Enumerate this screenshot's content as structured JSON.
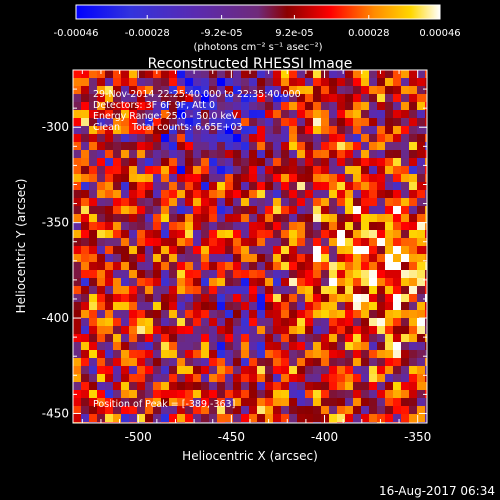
{
  "colorbar": {
    "ticks": [
      "-0.00046",
      "-0.00028",
      "-9.2e-05",
      "9.2e-05",
      "0.00028",
      "0.00046"
    ],
    "tick_values": [
      -0.00046,
      -0.00028,
      -9.2e-05,
      9.2e-05,
      0.00028,
      0.00046
    ],
    "range": [
      -0.00046,
      0.00046
    ],
    "units": "(photons cm⁻² s⁻¹ asec⁻²)"
  },
  "chart_data": {
    "type": "heatmap",
    "title": "Reconstructed RHESSI Image",
    "xlabel": "Heliocentric X (arcsec)",
    "ylabel": "Heliocentric Y (arcsec)",
    "xlim": [
      -535,
      -345
    ],
    "ylim": [
      -455,
      -270
    ],
    "x_ticks": [
      "-500",
      "-450",
      "-400",
      "-350"
    ],
    "x_tick_values": [
      -500,
      -450,
      -400,
      -350
    ],
    "y_ticks": [
      "-300",
      "-350",
      "-400",
      "-450"
    ],
    "y_tick_values": [
      -300,
      -350,
      -400,
      -450
    ],
    "peak": {
      "x": -389,
      "y": -363
    },
    "annotations": [
      "29-Nov-2014 22:25:40.000 to 22:35:40.000",
      "Detectors: 3F 6F 9F, Att 0",
      "Energy Range: 25.0 - 50.0 keV",
      "Clean    Total counts: 6.65E+03"
    ],
    "peak_label": "Position of Peak = [-389,-363]"
  },
  "colors": {
    "background": "#000000",
    "foreground": "#ffffff",
    "colormap_stops": [
      "#0000ff",
      "#3333dd",
      "#5a2ab0",
      "#6f2a7a",
      "#8b0000",
      "#ff0000",
      "#ff8c00",
      "#ffd700",
      "#ffffff"
    ]
  },
  "footer": {
    "timestamp": "16-Aug-2017 06:34"
  }
}
